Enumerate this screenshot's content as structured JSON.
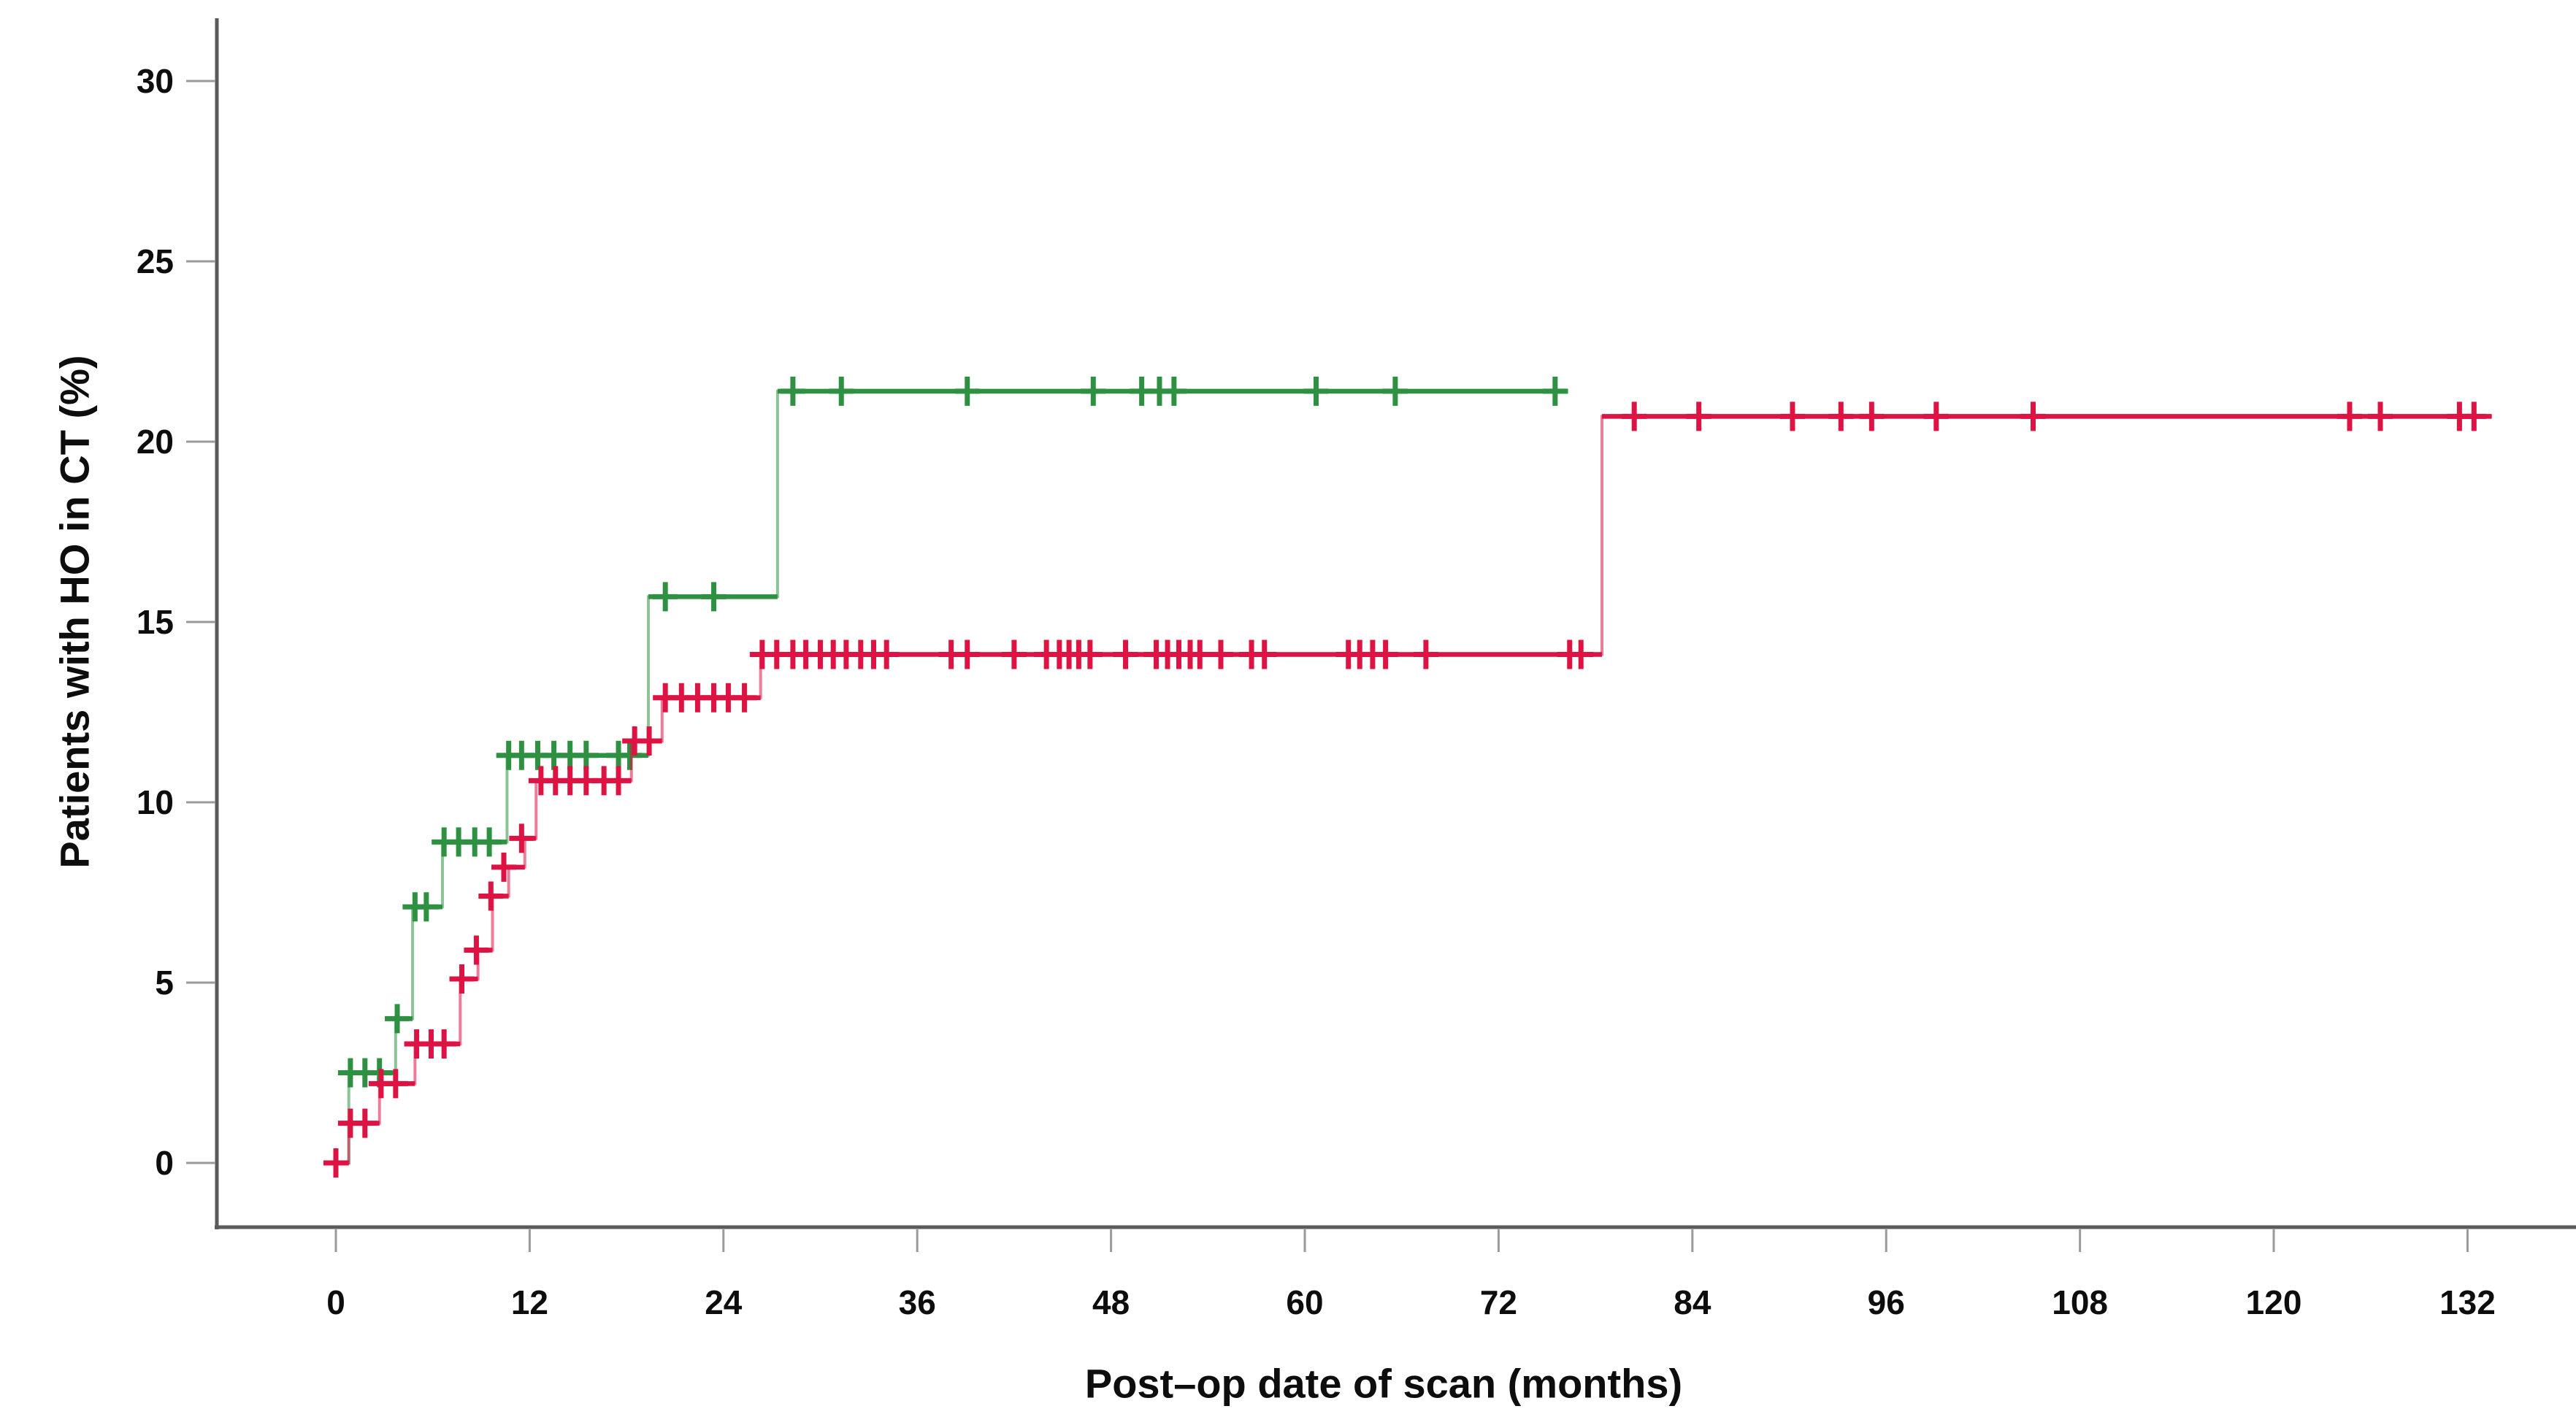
{
  "figure": {
    "background": "#ffffff",
    "kind": "Kaplan-Meier style cumulative incidence step plot with censor tick marks"
  },
  "axes": {
    "x": {
      "label": "Post–op date of scan (months)",
      "ticks": [
        0,
        12,
        24,
        36,
        48,
        60,
        72,
        84,
        96,
        108,
        120,
        132
      ]
    },
    "y": {
      "label": "Patients with HO in CT (%)",
      "ticks": [
        0,
        5,
        10,
        15,
        20,
        25,
        30
      ]
    }
  },
  "style": {
    "axis_line_color": "#5a5a5a",
    "tick_mark_color": "#9a9a9a",
    "tick_label_color": "#0d0d0d",
    "green": "#2e9141",
    "red": "#dc1343"
  },
  "chart_data": {
    "type": "line",
    "subtype": "step-survival",
    "title": "",
    "xlabel": "Post–op date of scan (months)",
    "ylabel": "Patients with HO in CT (%)",
    "xlim": [
      -7,
      139
    ],
    "ylim": [
      -1.8,
      31.8
    ],
    "x_ticks": [
      0,
      12,
      24,
      36,
      48,
      60,
      72,
      84,
      96,
      108,
      120,
      132
    ],
    "y_ticks": [
      0,
      5,
      10,
      15,
      20,
      25,
      30
    ],
    "grid": false,
    "legend": "none",
    "series": [
      {
        "name": "group-green",
        "color": "#2e9141",
        "steps": [
          [
            0,
            0
          ],
          [
            0.8,
            2.5
          ],
          [
            3.7,
            4.0
          ],
          [
            4.75,
            7.1
          ],
          [
            6.6,
            8.9
          ],
          [
            10.6,
            11.3
          ],
          [
            19.35,
            15.7
          ],
          [
            27.35,
            21.4
          ]
        ],
        "end_month": 76.3,
        "censors": [
          [
            0.9,
            2.5
          ],
          [
            1.8,
            2.5
          ],
          [
            2.7,
            2.5
          ],
          [
            3.8,
            4.0
          ],
          [
            4.9,
            7.1
          ],
          [
            5.6,
            7.1
          ],
          [
            6.7,
            8.9
          ],
          [
            7.6,
            8.9
          ],
          [
            8.6,
            8.9
          ],
          [
            9.5,
            8.9
          ],
          [
            10.7,
            11.3
          ],
          [
            11.5,
            11.3
          ],
          [
            12.5,
            11.3
          ],
          [
            13.5,
            11.3
          ],
          [
            14.5,
            11.3
          ],
          [
            15.5,
            11.3
          ],
          [
            17.5,
            11.3
          ],
          [
            18.2,
            11.3
          ],
          [
            20.4,
            15.7
          ],
          [
            23.4,
            15.7
          ],
          [
            28.3,
            21.4
          ],
          [
            31.3,
            21.4
          ],
          [
            39.1,
            21.4
          ],
          [
            46.9,
            21.4
          ],
          [
            49.9,
            21.4
          ],
          [
            51.0,
            21.4
          ],
          [
            51.9,
            21.4
          ],
          [
            60.7,
            21.4
          ],
          [
            65.6,
            21.4
          ],
          [
            75.5,
            21.4
          ]
        ]
      },
      {
        "name": "group-red",
        "color": "#dc1343",
        "steps": [
          [
            0,
            0
          ],
          [
            0.8,
            1.1
          ],
          [
            2.7,
            2.2
          ],
          [
            4.9,
            3.3
          ],
          [
            7.7,
            5.1
          ],
          [
            8.8,
            5.9
          ],
          [
            9.7,
            7.4
          ],
          [
            10.7,
            8.2
          ],
          [
            11.7,
            9.0
          ],
          [
            12.4,
            10.6
          ],
          [
            18.3,
            11.7
          ],
          [
            20.2,
            12.9
          ],
          [
            26.3,
            14.1
          ],
          [
            78.4,
            20.7
          ]
        ],
        "end_month": 133.5,
        "censors": [
          [
            0,
            0
          ],
          [
            0.9,
            1.1
          ],
          [
            1.8,
            1.1
          ],
          [
            2.8,
            2.2
          ],
          [
            3.7,
            2.2
          ],
          [
            5.0,
            3.3
          ],
          [
            5.9,
            3.3
          ],
          [
            6.7,
            3.3
          ],
          [
            7.8,
            5.1
          ],
          [
            8.7,
            5.9
          ],
          [
            9.6,
            7.4
          ],
          [
            10.4,
            8.2
          ],
          [
            11.5,
            9.0
          ],
          [
            12.7,
            10.6
          ],
          [
            13.6,
            10.6
          ],
          [
            14.5,
            10.6
          ],
          [
            15.5,
            10.6
          ],
          [
            16.6,
            10.6
          ],
          [
            17.5,
            10.6
          ],
          [
            18.5,
            11.7
          ],
          [
            19.4,
            11.7
          ],
          [
            20.4,
            12.9
          ],
          [
            21.4,
            12.9
          ],
          [
            22.4,
            12.9
          ],
          [
            23.4,
            12.9
          ],
          [
            24.3,
            12.9
          ],
          [
            25.3,
            12.9
          ],
          [
            26.4,
            14.1
          ],
          [
            27.3,
            14.1
          ],
          [
            28.3,
            14.1
          ],
          [
            29.1,
            14.1
          ],
          [
            30.0,
            14.1
          ],
          [
            30.8,
            14.1
          ],
          [
            31.6,
            14.1
          ],
          [
            32.5,
            14.1
          ],
          [
            33.3,
            14.1
          ],
          [
            34.1,
            14.1
          ],
          [
            38.1,
            14.1
          ],
          [
            39.1,
            14.1
          ],
          [
            42.0,
            14.1
          ],
          [
            44.0,
            14.1
          ],
          [
            44.8,
            14.1
          ],
          [
            45.4,
            14.1
          ],
          [
            46.0,
            14.1
          ],
          [
            46.7,
            14.1
          ],
          [
            48.9,
            14.1
          ],
          [
            50.8,
            14.1
          ],
          [
            51.5,
            14.1
          ],
          [
            52.2,
            14.1
          ],
          [
            52.9,
            14.1
          ],
          [
            53.5,
            14.1
          ],
          [
            54.8,
            14.1
          ],
          [
            56.7,
            14.1
          ],
          [
            57.5,
            14.1
          ],
          [
            62.7,
            14.1
          ],
          [
            63.4,
            14.1
          ],
          [
            64.2,
            14.1
          ],
          [
            65.0,
            14.1
          ],
          [
            67.5,
            14.1
          ],
          [
            76.4,
            14.1
          ],
          [
            77.1,
            14.1
          ],
          [
            80.4,
            20.7
          ],
          [
            84.4,
            20.7
          ],
          [
            90.2,
            20.7
          ],
          [
            93.2,
            20.7
          ],
          [
            95.1,
            20.7
          ],
          [
            99.1,
            20.7
          ],
          [
            105.1,
            20.7
          ],
          [
            124.7,
            20.7
          ],
          [
            126.6,
            20.7
          ],
          [
            131.5,
            20.7
          ],
          [
            132.4,
            20.7
          ]
        ]
      }
    ]
  }
}
